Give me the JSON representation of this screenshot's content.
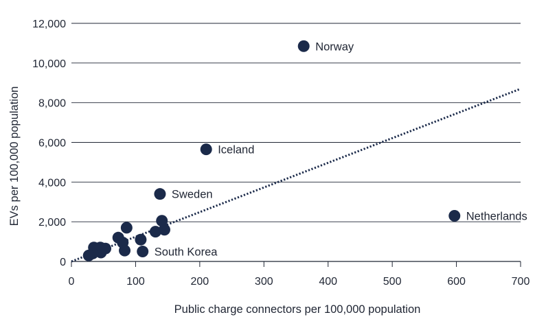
{
  "chart_data": {
    "type": "scatter",
    "title": "",
    "xlabel": "Public charge connectors per 100,000 population",
    "ylabel": "EVs per 100,000 population",
    "xlim": [
      0,
      700
    ],
    "ylim": [
      0,
      12000
    ],
    "xticks": [
      0,
      100,
      200,
      300,
      400,
      500,
      600,
      700
    ],
    "xtick_labels": [
      "0",
      "100",
      "200",
      "300",
      "400",
      "500",
      "600",
      "700"
    ],
    "yticks": [
      0,
      2000,
      4000,
      6000,
      8000,
      10000,
      12000
    ],
    "ytick_labels": [
      "0",
      "2,000",
      "4,000",
      "6,000",
      "8,000",
      "10,000",
      "12,000"
    ],
    "grid": "horizontal",
    "colors": {
      "marker": "#1b2a4a",
      "trend": "#1b2a4a",
      "grid": "#1f2533",
      "text": "#1f2533"
    },
    "points": [
      {
        "x": 362,
        "y": 10850,
        "label": "Norway"
      },
      {
        "x": 210,
        "y": 5650,
        "label": "Iceland"
      },
      {
        "x": 138,
        "y": 3400,
        "label": "Sweden"
      },
      {
        "x": 597,
        "y": 2300,
        "label": "Netherlands"
      },
      {
        "x": 111,
        "y": 500,
        "label": "South Korea"
      },
      {
        "x": 141,
        "y": 2050
      },
      {
        "x": 145,
        "y": 1600
      },
      {
        "x": 131,
        "y": 1500
      },
      {
        "x": 108,
        "y": 1100
      },
      {
        "x": 86,
        "y": 1700
      },
      {
        "x": 73,
        "y": 1200
      },
      {
        "x": 80,
        "y": 950
      },
      {
        "x": 83,
        "y": 550
      },
      {
        "x": 53,
        "y": 650
      },
      {
        "x": 45,
        "y": 700
      },
      {
        "x": 46,
        "y": 450
      },
      {
        "x": 35,
        "y": 700
      },
      {
        "x": 33,
        "y": 400
      },
      {
        "x": 27,
        "y": 300
      }
    ],
    "trendline": {
      "style": "dotted",
      "x": [
        0,
        700
      ],
      "y": [
        0,
        8700
      ]
    }
  }
}
